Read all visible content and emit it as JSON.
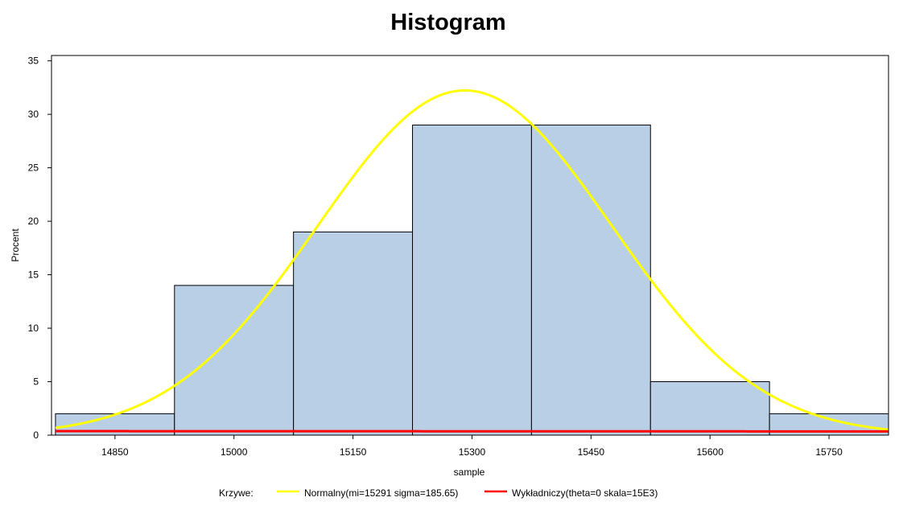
{
  "chart_data": {
    "type": "bar",
    "title": "Histogram",
    "xlabel": "sample",
    "ylabel": "Procent",
    "xlim": [
      14770,
      15825
    ],
    "ylim": [
      0,
      35.5
    ],
    "x_ticks": [
      14850,
      15000,
      15150,
      15300,
      15450,
      15600,
      15750
    ],
    "y_ticks": [
      0,
      5,
      10,
      15,
      20,
      25,
      30,
      35
    ],
    "bins": [
      {
        "start": 14775,
        "end": 14925,
        "value": 2
      },
      {
        "start": 14925,
        "end": 15075,
        "value": 14
      },
      {
        "start": 15075,
        "end": 15225,
        "value": 19
      },
      {
        "start": 15225,
        "end": 15375,
        "value": 29
      },
      {
        "start": 15375,
        "end": 15525,
        "value": 29
      },
      {
        "start": 15525,
        "end": 15675,
        "value": 5
      },
      {
        "start": 15675,
        "end": 15825,
        "value": 2
      }
    ],
    "bar_color": "#b9cfe6",
    "curves": [
      {
        "name": "Normalny(mi=15291 sigma=185.65)",
        "kind": "normal",
        "mu": 15291,
        "sigma": 185.65,
        "bin_width": 150,
        "color": "#ffff00"
      },
      {
        "name": "Wykładniczy(theta=0 skala=15E3)",
        "kind": "exponential",
        "theta": 0,
        "scale": 15000,
        "bin_width": 150,
        "color": "#ff0000"
      }
    ],
    "legend": {
      "label": "Krzywe:",
      "position": "bottom"
    }
  }
}
